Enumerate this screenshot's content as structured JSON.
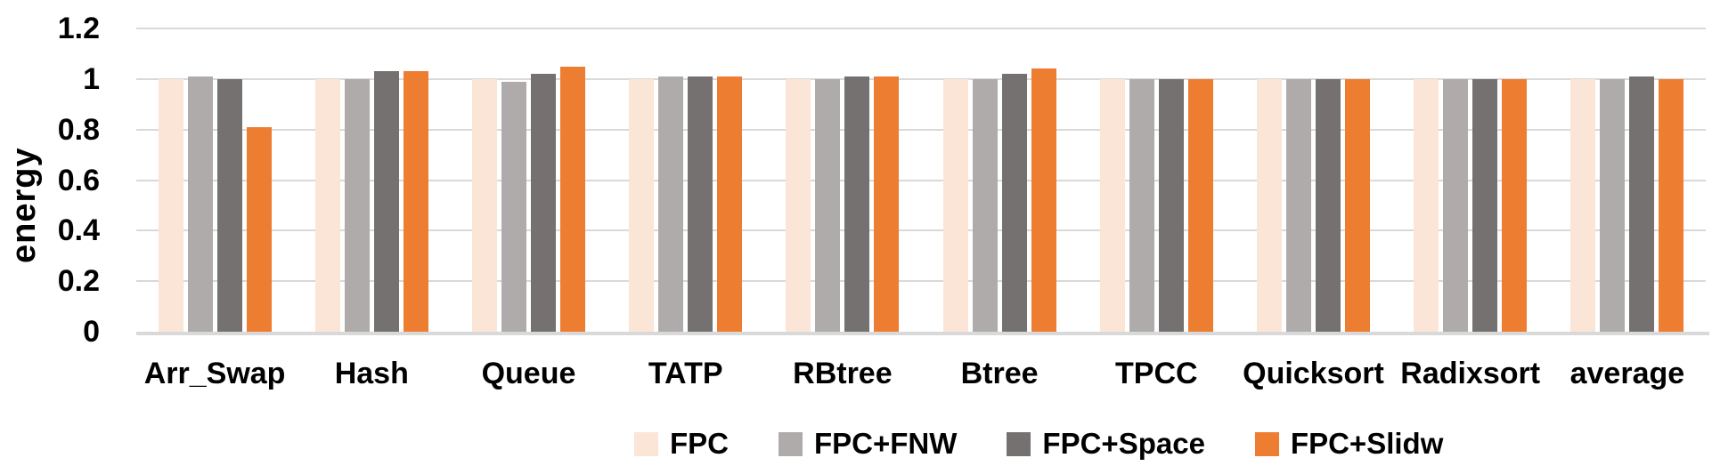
{
  "chart_data": {
    "type": "bar",
    "title": "",
    "xlabel": "",
    "ylabel": "energy",
    "ylim": [
      0,
      1.2
    ],
    "yticks": [
      0,
      0.2,
      0.4,
      0.6,
      0.8,
      1,
      1.2
    ],
    "ytick_labels": [
      "0",
      "0.2",
      "0.4",
      "0.6",
      "0.8",
      "1",
      "1.2"
    ],
    "grid": true,
    "legend_position": "bottom",
    "categories": [
      "Arr_Swap",
      "Hash",
      "Queue",
      "TATP",
      "RBtree",
      "Btree",
      "TPCC",
      "Quicksort",
      "Radixsort",
      "average"
    ],
    "series": [
      {
        "name": "FPC",
        "color": "#FBE5D6",
        "values": [
          1.0,
          1.0,
          1.0,
          1.0,
          1.0,
          1.0,
          1.0,
          1.0,
          1.0,
          1.0
        ]
      },
      {
        "name": "FPC+FNW",
        "color": "#AFABAB",
        "values": [
          1.01,
          1.0,
          0.99,
          1.01,
          1.0,
          1.0,
          1.0,
          1.0,
          1.0,
          1.0
        ]
      },
      {
        "name": "FPC+Space",
        "color": "#757171",
        "values": [
          1.0,
          1.03,
          1.02,
          1.01,
          1.01,
          1.02,
          1.0,
          1.0,
          1.0,
          1.01
        ]
      },
      {
        "name": "FPC+Slidw",
        "color": "#ED7D31",
        "values": [
          0.81,
          1.03,
          1.05,
          1.01,
          1.01,
          1.04,
          1.0,
          1.0,
          1.0,
          1.0
        ]
      }
    ]
  },
  "colors": {
    "gridline": "#D9D9D9",
    "axis_line": "#D9D9D9",
    "text": "#000000",
    "background": "#FFFFFF"
  }
}
